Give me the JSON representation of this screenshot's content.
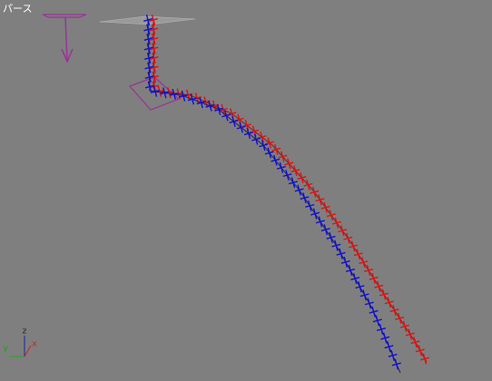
{
  "viewport": {
    "label": "パース"
  },
  "axis_gizmo": {
    "z": "z",
    "y": "y",
    "x": "x"
  }
}
